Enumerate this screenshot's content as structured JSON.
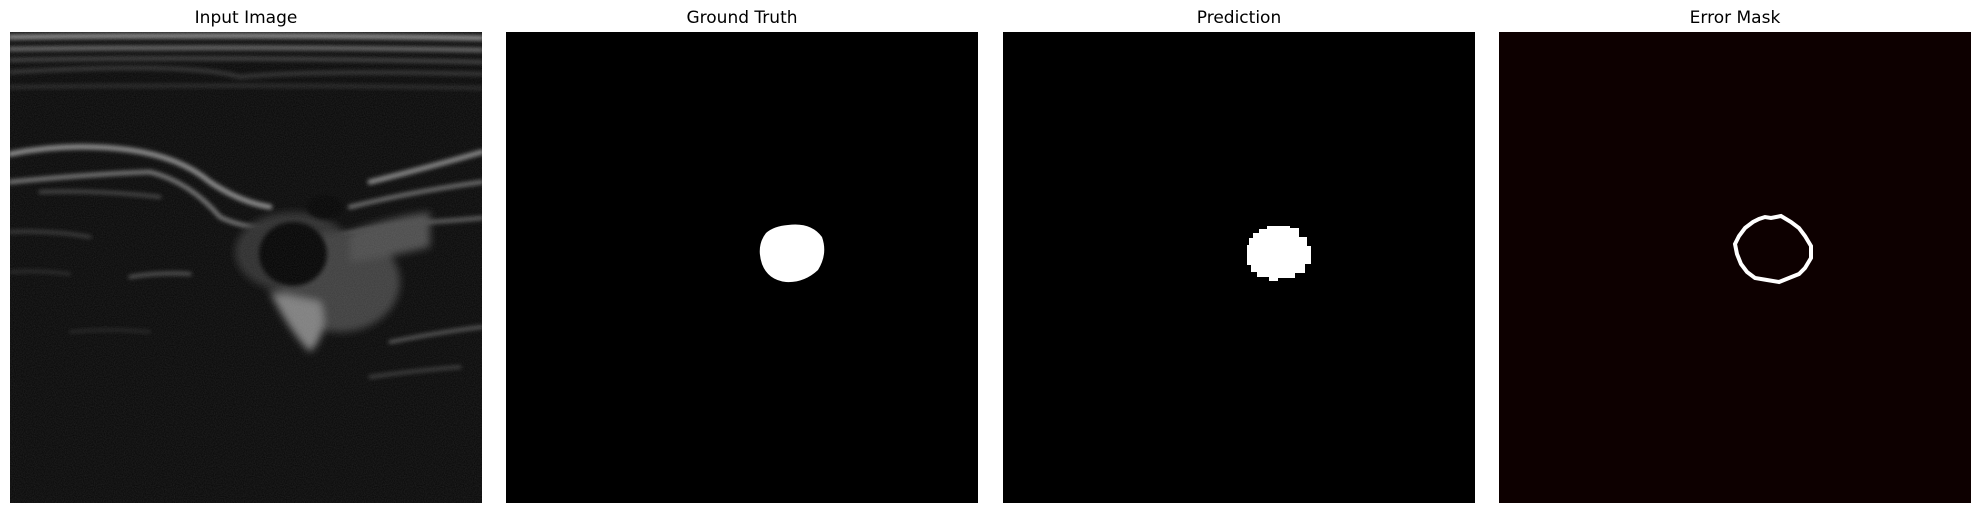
{
  "panels": [
    {
      "title": "Input Image"
    },
    {
      "title": "Ground Truth"
    },
    {
      "title": "Prediction"
    },
    {
      "title": "Error Mask"
    }
  ],
  "colors": {
    "page_background": "#ffffff",
    "mask_background": "#000000",
    "mask_foreground": "#ffffff",
    "error_background": "#0d0000",
    "error_foreground": "#ffffff"
  }
}
